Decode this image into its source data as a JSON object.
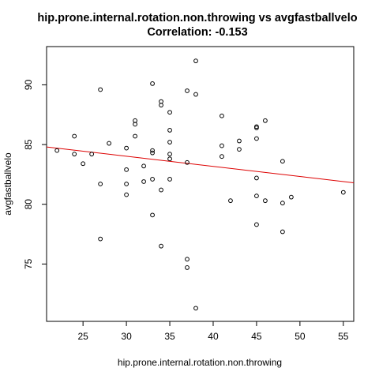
{
  "chart_data": {
    "type": "scatter",
    "title": "hip.prone.internal.rotation.non.throwing vs avgfastballvelo",
    "subtitle": "Correlation: -0.153",
    "xlabel": "hip.prone.internal.rotation.non.throwing",
    "ylabel": "avgfastballvelo",
    "xlim": [
      20.8,
      56.2
    ],
    "ylim": [
      70.2,
      93.2
    ],
    "xticks": [
      25,
      30,
      35,
      40,
      45,
      50,
      55
    ],
    "yticks": [
      75,
      80,
      85,
      90
    ],
    "grid": false,
    "legend": "none",
    "colors": {
      "points": "#000000",
      "regression_line": "#dd0000",
      "axes": "#000000"
    },
    "regression_line": {
      "x": [
        20.8,
        56.2
      ],
      "y": [
        84.8,
        81.8
      ]
    },
    "points": [
      {
        "x": 22,
        "y": 84.5
      },
      {
        "x": 24,
        "y": 85.7
      },
      {
        "x": 24,
        "y": 84.2
      },
      {
        "x": 25,
        "y": 83.4
      },
      {
        "x": 26,
        "y": 84.2
      },
      {
        "x": 27,
        "y": 89.6
      },
      {
        "x": 27,
        "y": 81.7
      },
      {
        "x": 27,
        "y": 77.1
      },
      {
        "x": 28,
        "y": 85.1
      },
      {
        "x": 30,
        "y": 84.7
      },
      {
        "x": 30,
        "y": 82.9
      },
      {
        "x": 30,
        "y": 81.7
      },
      {
        "x": 30,
        "y": 80.8
      },
      {
        "x": 31,
        "y": 87.0
      },
      {
        "x": 31,
        "y": 86.7
      },
      {
        "x": 31,
        "y": 85.7
      },
      {
        "x": 32,
        "y": 83.2
      },
      {
        "x": 32,
        "y": 81.9
      },
      {
        "x": 33,
        "y": 90.1
      },
      {
        "x": 33,
        "y": 84.5
      },
      {
        "x": 33,
        "y": 84.3
      },
      {
        "x": 33,
        "y": 82.1
      },
      {
        "x": 33,
        "y": 79.1
      },
      {
        "x": 34,
        "y": 88.6
      },
      {
        "x": 34,
        "y": 88.3
      },
      {
        "x": 34,
        "y": 81.2
      },
      {
        "x": 34,
        "y": 76.5
      },
      {
        "x": 35,
        "y": 87.7
      },
      {
        "x": 35,
        "y": 86.2
      },
      {
        "x": 35,
        "y": 85.2
      },
      {
        "x": 35,
        "y": 84.2
      },
      {
        "x": 35,
        "y": 83.8
      },
      {
        "x": 35,
        "y": 82.1
      },
      {
        "x": 37,
        "y": 89.5
      },
      {
        "x": 37,
        "y": 83.5
      },
      {
        "x": 37,
        "y": 75.4
      },
      {
        "x": 37,
        "y": 74.7
      },
      {
        "x": 38,
        "y": 92.0
      },
      {
        "x": 38,
        "y": 89.2
      },
      {
        "x": 38,
        "y": 71.3
      },
      {
        "x": 41,
        "y": 87.4
      },
      {
        "x": 41,
        "y": 84.9
      },
      {
        "x": 41,
        "y": 84.0
      },
      {
        "x": 42,
        "y": 80.3
      },
      {
        "x": 43,
        "y": 85.3
      },
      {
        "x": 43,
        "y": 84.6
      },
      {
        "x": 45,
        "y": 86.5
      },
      {
        "x": 45,
        "y": 86.4
      },
      {
        "x": 45,
        "y": 85.5
      },
      {
        "x": 45,
        "y": 82.2
      },
      {
        "x": 45,
        "y": 80.7
      },
      {
        "x": 45,
        "y": 78.3
      },
      {
        "x": 46,
        "y": 87.0
      },
      {
        "x": 46,
        "y": 80.3
      },
      {
        "x": 48,
        "y": 83.6
      },
      {
        "x": 48,
        "y": 80.1
      },
      {
        "x": 48,
        "y": 77.7
      },
      {
        "x": 49,
        "y": 80.6
      },
      {
        "x": 55,
        "y": 81.0
      }
    ]
  }
}
